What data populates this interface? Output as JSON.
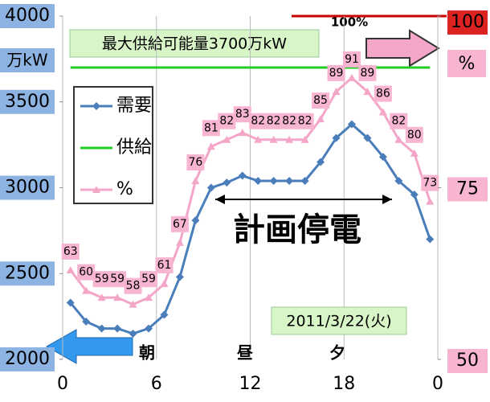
{
  "chart_data": {
    "type": "line",
    "x": [
      0.5,
      1.5,
      2.5,
      3.5,
      4.5,
      5.5,
      6.5,
      7.5,
      8.5,
      9.5,
      10.5,
      11.5,
      12.5,
      13.5,
      14.5,
      15.5,
      16.5,
      17.5,
      18.5,
      19.5,
      20.5,
      21.5,
      22.5,
      23.5
    ],
    "series": [
      {
        "name": "需要",
        "color": "#4a7ebb",
        "values": [
          2330,
          2220,
          2180,
          2180,
          2150,
          2180,
          2260,
          2480,
          2810,
          3000,
          3030,
          3070,
          3040,
          3040,
          3040,
          3040,
          3150,
          3290,
          3370,
          3290,
          3180,
          3040,
          2960,
          2700
        ]
      },
      {
        "name": "供給",
        "color": "#22cc22",
        "values": [
          3700,
          3700,
          3700,
          3700,
          3700,
          3700,
          3700,
          3700,
          3700,
          3700,
          3700,
          3700,
          3700,
          3700,
          3700,
          3700,
          3700,
          3700,
          3700,
          3700,
          3700,
          3700,
          3700,
          3700
        ]
      },
      {
        "name": "%",
        "color": "#f4a6c8",
        "axis": "y2",
        "values": [
          63,
          60,
          59,
          59,
          58,
          59,
          61,
          67,
          76,
          81,
          82,
          83,
          82,
          82,
          82,
          82,
          85,
          89,
          91,
          89,
          86,
          82,
          80,
          73
        ]
      }
    ],
    "xlim": [
      0,
      24
    ],
    "xticks": [
      0,
      6,
      12,
      18,
      {
        "value": 24,
        "label": "0"
      }
    ],
    "ylim": [
      2000,
      4000
    ],
    "yticks": [
      2000,
      2500,
      3000,
      3500,
      4000
    ],
    "y2lim": [
      50,
      100
    ],
    "y2ticks": [
      50,
      75,
      100
    ],
    "ylabel": "万kW",
    "y2label": "%",
    "xgrid": true,
    "legend": "upper left",
    "annotations": {
      "supply_note": "最大供給可能量3700万kW",
      "outage": "計画停電",
      "date": "2011/3/22(火)",
      "max_line": "100%",
      "periods": [
        "朝",
        "昼",
        "夕"
      ]
    }
  }
}
